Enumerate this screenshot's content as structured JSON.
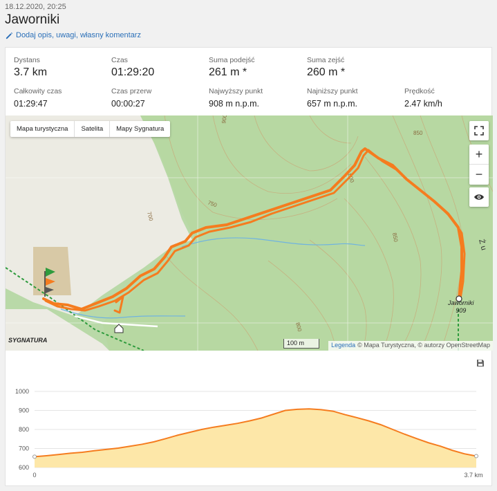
{
  "header": {
    "date": "18.12.2020, 20:25",
    "title": "Jaworniki",
    "edit_label": "Dodaj opis, uwagi, własny komentarz"
  },
  "stats": {
    "distance": {
      "label": "Dystans",
      "value": "3.7 km"
    },
    "time": {
      "label": "Czas",
      "value": "01:29:20"
    },
    "ascent": {
      "label": "Suma podejść",
      "value": "261 m *"
    },
    "descent": {
      "label": "Suma zejść",
      "value": "260 m *"
    },
    "total_time": {
      "label": "Całkowity czas",
      "value": "01:29:47"
    },
    "break_time": {
      "label": "Czas przerw",
      "value": "00:00:27"
    },
    "highest": {
      "label": "Najwyższy punkt",
      "value": "908 m n.p.m."
    },
    "lowest": {
      "label": "Najniższy punkt",
      "value": "657 m n.p.m."
    },
    "speed": {
      "label": "Prędkość",
      "value": "2.47 km/h"
    }
  },
  "map": {
    "layers": [
      "Mapa turystyczna",
      "Satelita",
      "Mapy Sygnatura"
    ],
    "scale": "100 m",
    "attribution_link": "Legenda",
    "attribution_text": "© Mapa Turystyczna, © autorzy OpenStreetMap",
    "peak_name": "Jaworniki",
    "peak_elev": "909",
    "brand": "SYGNATURA",
    "contour_labels": [
      "900",
      "850",
      "800",
      "750",
      "700",
      "850",
      "800"
    ],
    "trail_label": "Ż u",
    "track_color": "#f57c1f",
    "zoom_in": "+",
    "zoom_out": "−"
  },
  "profile": {
    "y_ticks": [
      "1000",
      "900",
      "800",
      "700",
      "600"
    ],
    "x_start": "0",
    "x_end": "3.7 km",
    "fill_color": "#fde7a8",
    "line_color": "#f57c1f"
  },
  "chart_data": {
    "type": "area",
    "x": [
      0,
      0.1,
      0.2,
      0.3,
      0.4,
      0.5,
      0.6,
      0.7,
      0.8,
      0.9,
      1.0,
      1.1,
      1.2,
      1.3,
      1.4,
      1.5,
      1.6,
      1.7,
      1.8,
      1.9,
      2.0,
      2.1,
      2.2,
      2.3,
      2.4,
      2.5,
      2.6,
      2.7,
      2.8,
      2.9,
      3.0,
      3.1,
      3.2,
      3.3,
      3.4,
      3.5,
      3.6,
      3.7
    ],
    "y": [
      657,
      662,
      668,
      675,
      680,
      688,
      695,
      702,
      712,
      722,
      735,
      752,
      770,
      785,
      800,
      812,
      822,
      832,
      845,
      860,
      880,
      900,
      906,
      908,
      904,
      896,
      878,
      862,
      845,
      825,
      800,
      775,
      752,
      730,
      712,
      690,
      672,
      660
    ],
    "xlim": [
      0,
      3.7
    ],
    "ylim": [
      600,
      1000
    ]
  }
}
